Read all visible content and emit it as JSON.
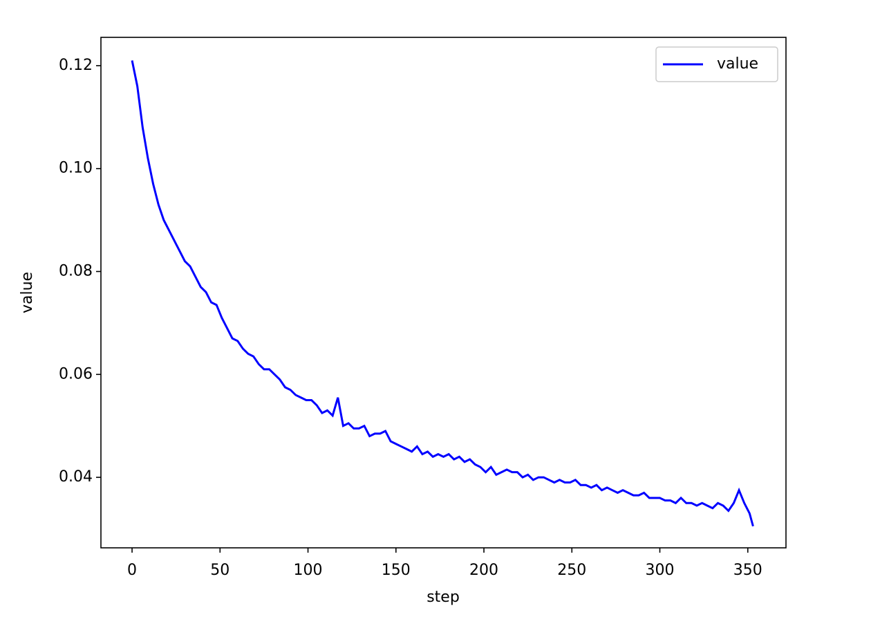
{
  "chart_data": {
    "type": "line",
    "x_label": "step",
    "y_label": "value",
    "x": [
      0,
      3,
      6,
      9,
      12,
      15,
      18,
      21,
      24,
      27,
      30,
      33,
      36,
      39,
      42,
      45,
      48,
      51,
      54,
      57,
      60,
      63,
      66,
      69,
      72,
      75,
      78,
      81,
      84,
      87,
      90,
      93,
      96,
      99,
      102,
      105,
      108,
      111,
      114,
      117,
      120,
      123,
      126,
      129,
      132,
      135,
      138,
      141,
      144,
      147,
      150,
      153,
      156,
      159,
      162,
      165,
      168,
      171,
      174,
      177,
      180,
      183,
      186,
      189,
      192,
      195,
      198,
      201,
      204,
      207,
      210,
      213,
      216,
      219,
      222,
      225,
      228,
      231,
      234,
      237,
      240,
      243,
      246,
      249,
      252,
      255,
      258,
      261,
      264,
      267,
      270,
      273,
      276,
      279,
      282,
      285,
      288,
      291,
      294,
      297,
      300,
      303,
      306,
      309,
      312,
      315,
      318,
      321,
      324,
      327,
      330,
      333,
      336,
      339,
      342,
      345,
      348,
      351,
      353
    ],
    "series": [
      {
        "name": "value",
        "color": "#0000ff",
        "values": [
          0.121,
          0.116,
          0.108,
          0.102,
          0.097,
          0.093,
          0.09,
          0.088,
          0.086,
          0.084,
          0.082,
          0.081,
          0.079,
          0.077,
          0.076,
          0.074,
          0.0735,
          0.071,
          0.069,
          0.067,
          0.0665,
          0.065,
          0.064,
          0.0635,
          0.062,
          0.061,
          0.061,
          0.06,
          0.059,
          0.0575,
          0.057,
          0.056,
          0.0555,
          0.055,
          0.055,
          0.054,
          0.0525,
          0.053,
          0.052,
          0.0555,
          0.05,
          0.0505,
          0.0495,
          0.0495,
          0.05,
          0.048,
          0.0485,
          0.0485,
          0.049,
          0.047,
          0.0465,
          0.046,
          0.0455,
          0.045,
          0.046,
          0.0445,
          0.045,
          0.044,
          0.0445,
          0.044,
          0.0445,
          0.0435,
          0.044,
          0.043,
          0.0435,
          0.0425,
          0.042,
          0.041,
          0.042,
          0.0405,
          0.041,
          0.0415,
          0.041,
          0.041,
          0.04,
          0.0405,
          0.0395,
          0.04,
          0.04,
          0.0395,
          0.039,
          0.0395,
          0.039,
          0.039,
          0.0395,
          0.0385,
          0.0385,
          0.038,
          0.0385,
          0.0375,
          0.038,
          0.0375,
          0.037,
          0.0375,
          0.037,
          0.0365,
          0.0365,
          0.037,
          0.036,
          0.036,
          0.036,
          0.0355,
          0.0355,
          0.035,
          0.036,
          0.035,
          0.035,
          0.0345,
          0.035,
          0.0345,
          0.034,
          0.035,
          0.0345,
          0.0335,
          0.035,
          0.0375,
          0.035,
          0.033,
          0.0305
        ]
      }
    ],
    "xlim": [
      -17.7,
      371.7
    ],
    "xticks": [
      0,
      50,
      100,
      150,
      200,
      250,
      300,
      350
    ],
    "ylim": [
      0.0263,
      0.1255
    ],
    "yticks": [
      0.04,
      0.06,
      0.08,
      {
        "value": 0.1,
        "label": "0.10"
      },
      0.12
    ],
    "legend": "upper right"
  }
}
